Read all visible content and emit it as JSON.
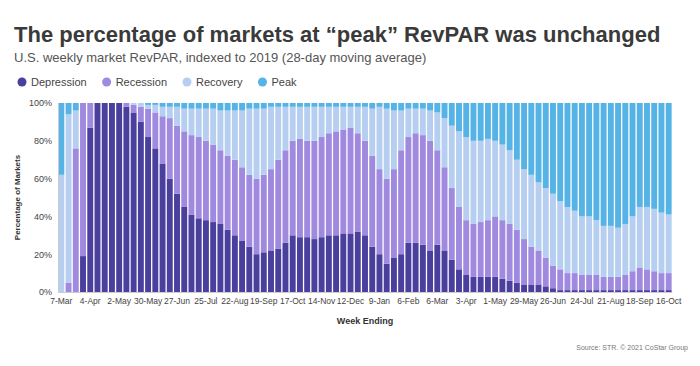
{
  "chart_data": {
    "type": "bar",
    "title": "The percentage of markets at “peak” RevPAR was unchanged",
    "subtitle": "U.S. weekly market RevPAR, indexed to 2019 (28-day moving average)",
    "x_label": "Week Ending",
    "y_label": "Percentage of Markets",
    "source": "Source: STR. © 2021 CoStar Group",
    "stacked": true,
    "legend": "top-left",
    "grid": false,
    "ylim": [
      0,
      100
    ],
    "yticks": [
      {
        "value": 0,
        "label": "0%"
      },
      {
        "value": 20,
        "label": "20%"
      },
      {
        "value": 40,
        "label": "40%"
      },
      {
        "value": 60,
        "label": "60%"
      },
      {
        "value": 80,
        "label": "80%"
      },
      {
        "value": 100,
        "label": "100%"
      }
    ],
    "categories": [
      "7-Mar",
      null,
      null,
      null,
      "4-Apr",
      null,
      null,
      null,
      "2-May",
      null,
      null,
      null,
      "30-May",
      null,
      null,
      null,
      "27-Jun",
      null,
      null,
      null,
      "25-Jul",
      null,
      null,
      null,
      "22-Aug",
      null,
      null,
      null,
      "19-Sep",
      null,
      null,
      null,
      "17-Oct",
      null,
      null,
      null,
      "14-Nov",
      null,
      null,
      null,
      "12-Dec",
      null,
      null,
      null,
      "9-Jan",
      null,
      null,
      null,
      "6-Feb",
      null,
      null,
      null,
      "6-Mar",
      null,
      null,
      null,
      "3-Apr",
      null,
      null,
      null,
      "1-May",
      null,
      null,
      null,
      "29-May",
      null,
      null,
      null,
      "26-Jun",
      null,
      null,
      null,
      "24-Jul",
      null,
      null,
      null,
      "21-Aug",
      null,
      null,
      null,
      "18-Sep",
      null,
      null,
      null,
      "16-Oct"
    ],
    "series": [
      {
        "name": "Depression",
        "color": "#4b3f9e",
        "values": [
          0,
          0,
          0,
          19,
          87,
          100,
          100,
          100,
          100,
          98,
          95,
          90,
          82,
          76,
          68,
          60,
          52,
          45,
          41,
          39,
          38,
          37,
          36,
          33,
          30,
          27,
          24,
          20,
          21,
          22,
          23,
          26,
          30,
          29,
          29,
          28,
          29,
          30,
          30,
          31,
          31,
          32,
          30,
          24,
          20,
          15,
          18,
          20,
          26,
          26,
          25,
          22,
          25,
          22,
          17,
          12,
          9,
          8,
          8,
          8,
          8,
          7,
          6,
          5,
          4,
          4,
          4,
          3,
          2,
          1,
          1,
          1,
          1,
          1,
          1,
          1,
          1,
          1,
          1,
          1,
          1,
          1,
          1,
          1,
          1
        ]
      },
      {
        "name": "Recession",
        "color": "#9f8ae0",
        "values": [
          0,
          5,
          76,
          81,
          13,
          0,
          0,
          0,
          0,
          2,
          4,
          8,
          15,
          19,
          25,
          32,
          36,
          40,
          42,
          43,
          42,
          41,
          39,
          39,
          40,
          39,
          38,
          40,
          41,
          43,
          47,
          49,
          50,
          52,
          51,
          52,
          53,
          54,
          55,
          55,
          56,
          52,
          50,
          48,
          45,
          45,
          47,
          55,
          56,
          58,
          58,
          58,
          50,
          44,
          38,
          33,
          29,
          28,
          29,
          30,
          32,
          31,
          30,
          28,
          24,
          20,
          18,
          15,
          12,
          11,
          9,
          9,
          8,
          8,
          8,
          7,
          7,
          7,
          8,
          10,
          12,
          11,
          10,
          9,
          9
        ]
      },
      {
        "name": "Recovery",
        "color": "#b6cff1",
        "values": [
          62,
          89,
          20,
          0,
          0,
          0,
          0,
          0,
          0,
          0,
          1,
          2,
          2,
          4,
          5,
          6,
          10,
          12,
          14,
          15,
          17,
          19,
          21,
          24,
          26,
          30,
          35,
          37,
          35,
          33,
          28,
          23,
          18,
          17,
          18,
          18,
          16,
          14,
          13,
          12,
          11,
          14,
          18,
          25,
          33,
          37,
          31,
          21,
          15,
          13,
          14,
          16,
          20,
          26,
          33,
          40,
          44,
          44,
          43,
          43,
          40,
          40,
          39,
          37,
          37,
          38,
          36,
          37,
          38,
          36,
          35,
          33,
          31,
          31,
          29,
          27,
          27,
          26,
          27,
          29,
          32,
          33,
          33,
          32,
          31
        ]
      },
      {
        "name": "Peak",
        "color": "#55b3e6",
        "values": [
          38,
          6,
          4,
          0,
          0,
          0,
          0,
          0,
          0,
          0,
          0,
          0,
          1,
          1,
          2,
          2,
          2,
          3,
          3,
          3,
          3,
          3,
          4,
          4,
          4,
          4,
          3,
          3,
          3,
          2,
          2,
          2,
          2,
          2,
          2,
          2,
          2,
          2,
          2,
          2,
          2,
          2,
          2,
          3,
          2,
          3,
          4,
          4,
          3,
          3,
          3,
          4,
          5,
          8,
          12,
          15,
          18,
          20,
          20,
          19,
          20,
          22,
          25,
          30,
          35,
          38,
          42,
          45,
          48,
          52,
          55,
          57,
          60,
          60,
          62,
          65,
          65,
          66,
          64,
          60,
          55,
          55,
          56,
          58,
          59
        ]
      }
    ]
  }
}
